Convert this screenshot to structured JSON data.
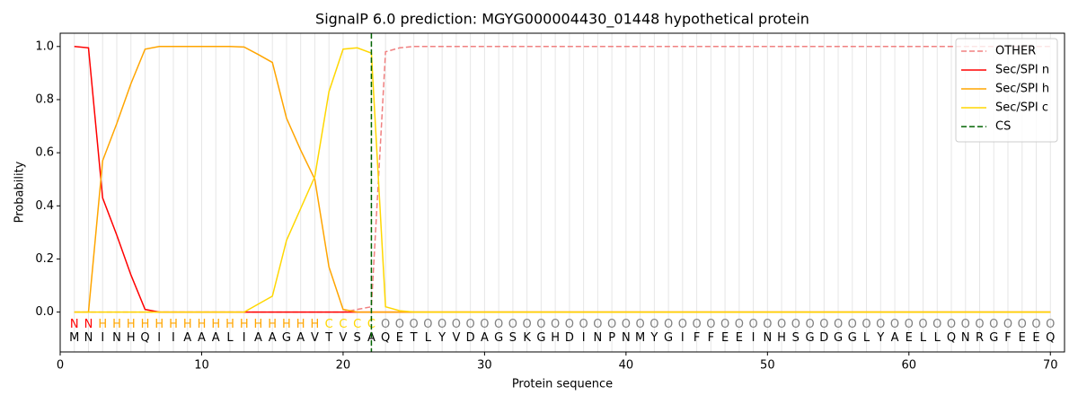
{
  "chart_data": {
    "type": "line",
    "title": "SignalP 6.0 prediction: MGYG000004430_01448 hypothetical protein",
    "xlabel": "Protein sequence",
    "ylabel": "Probability",
    "xlim": [
      0,
      71
    ],
    "ylim": [
      -0.15,
      1.05
    ],
    "xticks": [
      0,
      10,
      20,
      30,
      40,
      50,
      60,
      70
    ],
    "yticks": [
      {
        "value": 0,
        "label": "0.0"
      },
      {
        "value": 0.2,
        "label": "0.2"
      },
      {
        "value": 0.4,
        "label": "0.4"
      },
      {
        "value": 0.6,
        "label": "0.6"
      },
      {
        "value": 0.8,
        "label": "0.8"
      },
      {
        "value": 1,
        "label": "1.0"
      }
    ],
    "grid": true,
    "legend": "upper right",
    "x": [
      1,
      2,
      3,
      4,
      5,
      6,
      7,
      8,
      9,
      10,
      11,
      12,
      13,
      14,
      15,
      16,
      17,
      18,
      19,
      20,
      21,
      22,
      23,
      24,
      25,
      26,
      27,
      28,
      29,
      30,
      31,
      32,
      33,
      34,
      35,
      36,
      37,
      38,
      39,
      40,
      41,
      42,
      43,
      44,
      45,
      46,
      47,
      48,
      49,
      50,
      51,
      52,
      53,
      54,
      55,
      56,
      57,
      58,
      59,
      60,
      61,
      62,
      63,
      64,
      65,
      66,
      67,
      68,
      69,
      70
    ],
    "sequence": [
      "M",
      "N",
      "I",
      "N",
      "H",
      "Q",
      "I",
      "I",
      "A",
      "A",
      "A",
      "L",
      "I",
      "A",
      "A",
      "G",
      "A",
      "V",
      "T",
      "V",
      "S",
      "A",
      "Q",
      "E",
      "T",
      "L",
      "Y",
      "V",
      "D",
      "A",
      "G",
      "S",
      "K",
      "G",
      "H",
      "D",
      "I",
      "N",
      "P",
      "N",
      "M",
      "Y",
      "G",
      "I",
      "F",
      "F",
      "E",
      "E",
      "I",
      "N",
      "H",
      "S",
      "G",
      "D",
      "G",
      "G",
      "L",
      "Y",
      "A",
      "E",
      "L",
      "L",
      "Q",
      "N",
      "R",
      "G",
      "F",
      "E",
      "E",
      "Q"
    ],
    "regions": [
      "N",
      "N",
      "H",
      "H",
      "H",
      "H",
      "H",
      "H",
      "H",
      "H",
      "H",
      "H",
      "H",
      "H",
      "H",
      "H",
      "H",
      "H",
      "C",
      "C",
      "C",
      "C",
      "O",
      "O",
      "O",
      "O",
      "O",
      "O",
      "O",
      "O",
      "O",
      "O",
      "O",
      "O",
      "O",
      "O",
      "O",
      "O",
      "O",
      "O",
      "O",
      "O",
      "O",
      "O",
      "O",
      "O",
      "O",
      "O",
      "O",
      "O",
      "O",
      "O",
      "O",
      "O",
      "O",
      "O",
      "O",
      "O",
      "O",
      "O",
      "O",
      "O",
      "O",
      "O",
      "O",
      "O",
      "O",
      "O",
      "O",
      "O"
    ],
    "region_colors": {
      "N": "#ff0000",
      "H": "#ffa500",
      "C": "#ffd700",
      "O": "#808080"
    },
    "series": [
      {
        "name": "OTHER",
        "color": "#f08080",
        "linestyle": "dashed",
        "values": [
          0,
          0,
          0,
          0,
          0,
          0,
          0,
          0,
          0,
          0,
          0,
          0,
          0,
          0,
          0,
          0,
          0,
          0,
          0,
          0,
          0.01,
          0.02,
          0.98,
          0.995,
          1,
          1,
          1,
          1,
          1,
          1,
          1,
          1,
          1,
          1,
          1,
          1,
          1,
          1,
          1,
          1,
          1,
          1,
          1,
          1,
          1,
          1,
          1,
          1,
          1,
          1,
          1,
          1,
          1,
          1,
          1,
          1,
          1,
          1,
          1,
          1,
          1,
          1,
          1,
          1,
          1,
          1,
          1,
          1,
          1,
          1
        ]
      },
      {
        "name": "Sec/SPI n",
        "color": "#ff0000",
        "linestyle": "solid",
        "values": [
          1,
          0.995,
          0.43,
          0.29,
          0.14,
          0.01,
          0,
          0,
          0,
          0,
          0,
          0,
          0,
          0,
          0,
          0,
          0,
          0,
          0,
          0,
          0,
          0,
          0,
          0,
          0,
          0,
          0,
          0,
          0,
          0,
          0,
          0,
          0,
          0,
          0,
          0,
          0,
          0,
          0,
          0,
          0,
          0,
          0,
          0,
          0,
          0,
          0,
          0,
          0,
          0,
          0,
          0,
          0,
          0,
          0,
          0,
          0,
          0,
          0,
          0,
          0,
          0,
          0,
          0,
          0,
          0,
          0,
          0,
          0,
          0
        ]
      },
      {
        "name": "Sec/SPI h",
        "color": "#ffa500",
        "linestyle": "solid",
        "values": [
          0,
          0,
          0.57,
          0.71,
          0.86,
          0.99,
          1,
          1,
          1,
          1,
          1,
          1,
          0.998,
          0.97,
          0.94,
          0.73,
          0.61,
          0.5,
          0.17,
          0.01,
          0,
          0,
          0,
          0,
          0,
          0,
          0,
          0,
          0,
          0,
          0,
          0,
          0,
          0,
          0,
          0,
          0,
          0,
          0,
          0,
          0,
          0,
          0,
          0,
          0,
          0,
          0,
          0,
          0,
          0,
          0,
          0,
          0,
          0,
          0,
          0,
          0,
          0,
          0,
          0,
          0,
          0,
          0,
          0,
          0,
          0,
          0,
          0,
          0,
          0
        ]
      },
      {
        "name": "Sec/SPI c",
        "color": "#ffd700",
        "linestyle": "solid",
        "values": [
          0,
          0,
          0,
          0,
          0,
          0,
          0,
          0,
          0,
          0,
          0,
          0,
          0,
          0.03,
          0.06,
          0.27,
          0.39,
          0.51,
          0.83,
          0.99,
          0.995,
          0.975,
          0.02,
          0.005,
          0,
          0,
          0,
          0,
          0,
          0,
          0,
          0,
          0,
          0,
          0,
          0,
          0,
          0,
          0,
          0,
          0,
          0,
          0,
          0,
          0,
          0,
          0,
          0,
          0,
          0,
          0,
          0,
          0,
          0,
          0,
          0,
          0,
          0,
          0,
          0,
          0,
          0,
          0,
          0,
          0,
          0,
          0,
          0,
          0,
          0
        ]
      }
    ],
    "vlines": [
      {
        "name": "CS",
        "x": 22,
        "color": "#006400",
        "linestyle": "dashed"
      }
    ]
  }
}
